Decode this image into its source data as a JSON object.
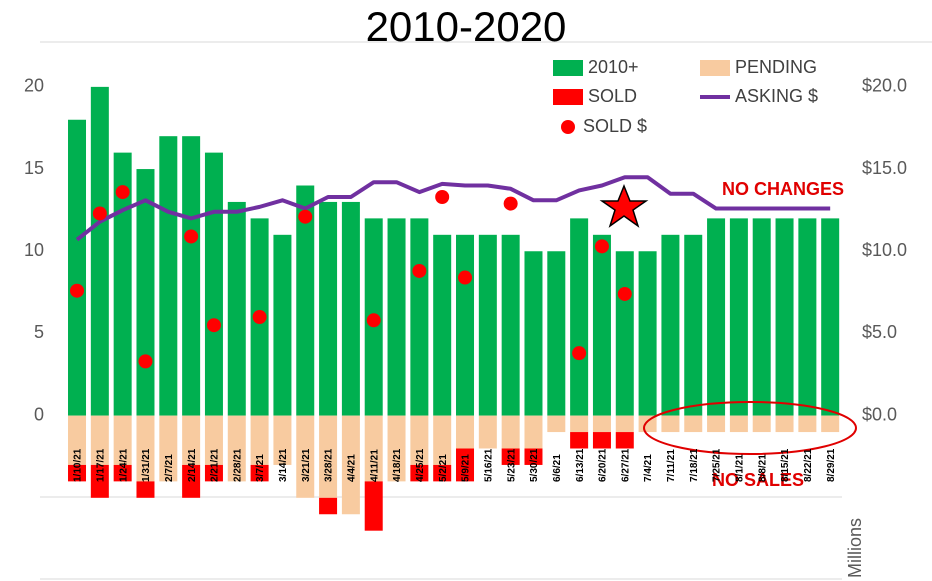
{
  "chart_data": {
    "type": "bar",
    "title": "2010-2020",
    "categories": [
      "1/10/21",
      "1/17/21",
      "1/24/21",
      "1/31/21",
      "2/7/21",
      "2/14/21",
      "2/21/21",
      "2/28/21",
      "3/7/21",
      "3/14/21",
      "3/21/21",
      "3/28/21",
      "4/4/21",
      "4/11/21",
      "4/18/21",
      "4/25/21",
      "5/2/21",
      "5/9/21",
      "5/16/21",
      "5/23/21",
      "5/30/21",
      "6/6/21",
      "6/13/21",
      "6/20/21",
      "6/27/21",
      "7/4/21",
      "7/11/21",
      "7/18/21",
      "7/25/21",
      "8/1/21",
      "8/8/21",
      "8/15/21",
      "8/22/21",
      "8/29/21"
    ],
    "series": [
      {
        "name": "2010+",
        "type": "bar",
        "color": "#00b050",
        "values": [
          18,
          20,
          16,
          15,
          17,
          17,
          16,
          13,
          12,
          11,
          14,
          13,
          13,
          12,
          12,
          12,
          11,
          11,
          11,
          11,
          10,
          10,
          12,
          11,
          10,
          10,
          11,
          11,
          12,
          12,
          12,
          12,
          12,
          12
        ]
      },
      {
        "name": "PENDING",
        "type": "bar",
        "color": "#f8cba0",
        "values": [
          -3,
          -3,
          -3,
          -4,
          -4,
          -3,
          -3,
          -4,
          -3,
          -3,
          -5,
          -5,
          -6,
          -4,
          -4,
          -3,
          -3,
          -2,
          -2,
          -2,
          -2,
          -1,
          -1,
          -1,
          -1,
          -1,
          -1,
          -1,
          -1,
          -1,
          -1,
          -1,
          -1,
          -1
        ]
      },
      {
        "name": "SOLD",
        "type": "bar",
        "color": "#ff0000",
        "values": [
          -1,
          -2,
          -1,
          -1,
          null,
          -2,
          -1,
          null,
          -1,
          null,
          null,
          -1,
          null,
          -3,
          null,
          -1,
          -1,
          -2,
          null,
          -1,
          -1,
          null,
          -1,
          -1,
          -1,
          null,
          null,
          null,
          null,
          null,
          null,
          null,
          null,
          null
        ]
      },
      {
        "name": "ASKING $",
        "type": "line",
        "axis": "y2",
        "color": "#7030a0",
        "values": [
          10.7,
          11.8,
          12.5,
          13.1,
          12.4,
          12.0,
          12.4,
          12.4,
          12.7,
          13.1,
          12.6,
          13.3,
          13.3,
          14.2,
          14.2,
          13.6,
          14.1,
          14.0,
          14.0,
          13.8,
          13.1,
          13.1,
          13.7,
          14.0,
          14.5,
          14.5,
          13.5,
          13.5,
          12.6,
          12.6,
          12.6,
          12.6,
          12.6,
          12.6
        ]
      },
      {
        "name": "SOLD $",
        "type": "scatter",
        "axis": "y2",
        "color": "#ff0000",
        "values": [
          7.6,
          12.3,
          13.6,
          3.3,
          null,
          10.9,
          5.5,
          null,
          6.0,
          null,
          12.1,
          null,
          null,
          5.8,
          null,
          8.8,
          13.3,
          8.4,
          null,
          12.9,
          null,
          null,
          3.8,
          10.3,
          7.4,
          null,
          null,
          null,
          null,
          null,
          null,
          null,
          null,
          null
        ]
      }
    ],
    "ylim": [
      -10,
      22
    ],
    "yticks": [
      0,
      5,
      10,
      15,
      20
    ],
    "y2lim": [
      -10,
      22
    ],
    "y2ticks": [
      {
        "value": 0,
        "label": "$0.0"
      },
      {
        "value": 5,
        "label": "$5.0"
      },
      {
        "value": 10,
        "label": "$10.0"
      },
      {
        "value": 15,
        "label": "$15.0"
      },
      {
        "value": 20,
        "label": "$20.0"
      }
    ],
    "y2label": "Millions",
    "annotations": [
      "NO CHANGES",
      "NO SALES"
    ]
  }
}
